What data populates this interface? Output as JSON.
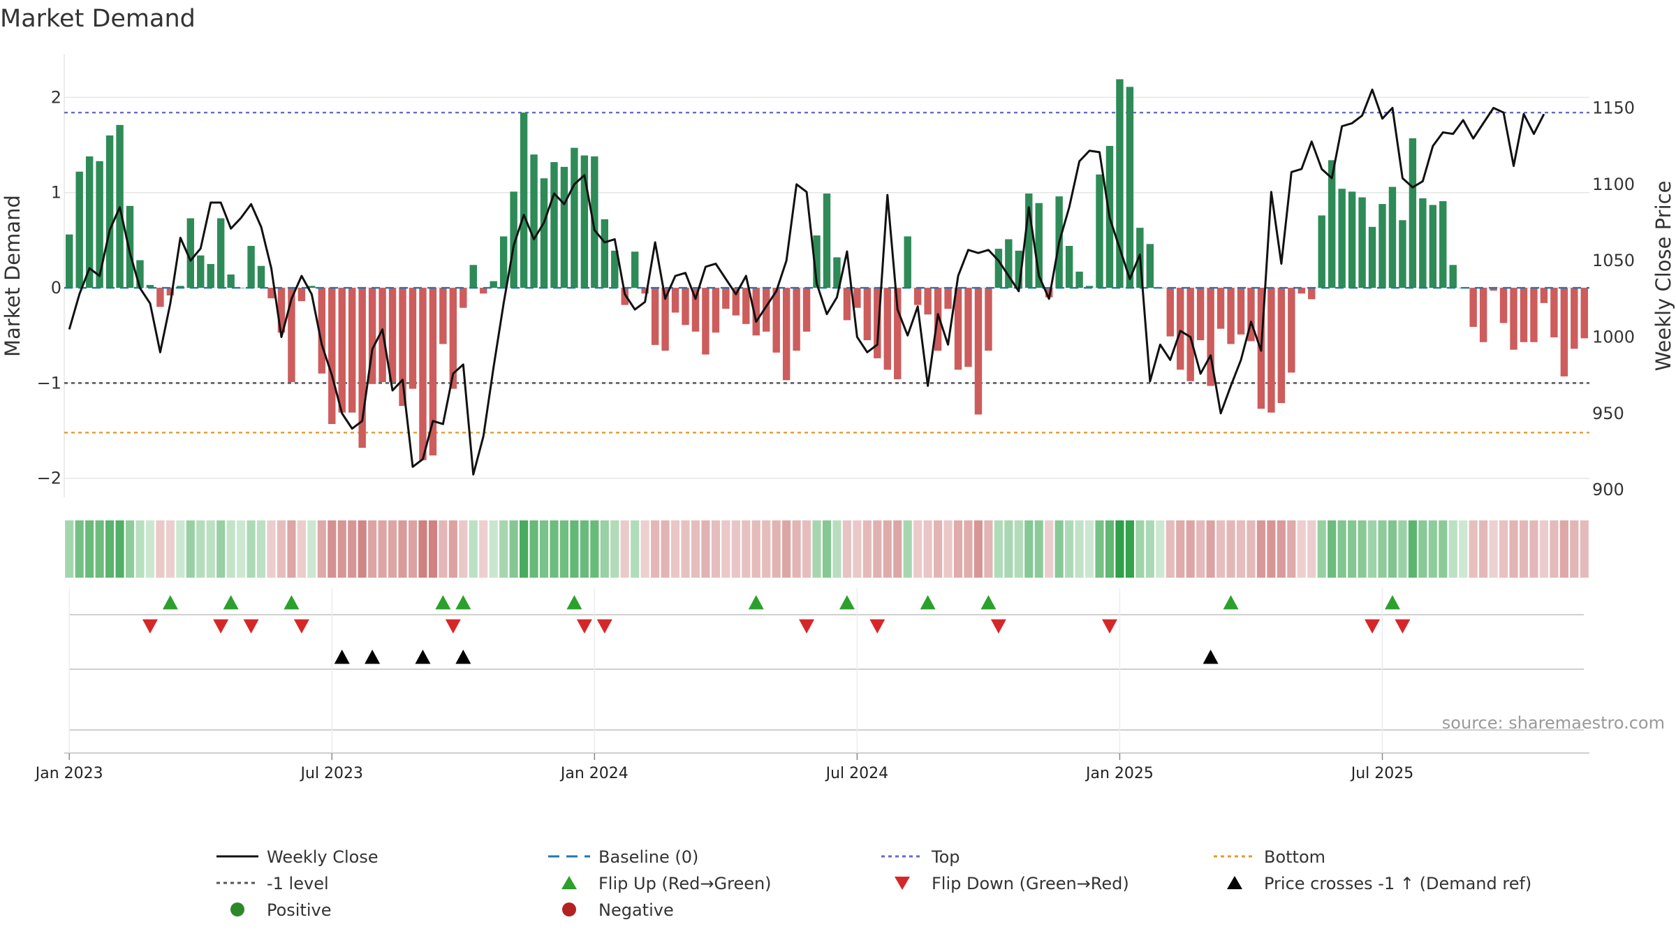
{
  "chart_data": {
    "type": "bar+line",
    "title": "Market Demand",
    "ylabel_left": "Market Demand",
    "ylabel_right": "Weekly Close Price",
    "ylim_left": [
      -2.2,
      2.45
    ],
    "ylim_right": [
      895,
      1185
    ],
    "yticks_left": [
      2,
      1,
      0,
      -1,
      -2
    ],
    "yticks_left_labels": [
      "2",
      "1",
      "0",
      "−1",
      "−2"
    ],
    "yticks_right": [
      1150,
      1100,
      1050,
      1000,
      950,
      900
    ],
    "yticks_right_labels": [
      "1150",
      "1100",
      "1050",
      "1000",
      "950",
      "900"
    ],
    "x_ticks": [
      {
        "week": 1,
        "label": "Jan 2023"
      },
      {
        "week": 27,
        "label": "Jul 2023"
      },
      {
        "week": 53,
        "label": "Jan 2024"
      },
      {
        "week": 79,
        "label": "Jul 2024"
      },
      {
        "week": 105,
        "label": "Jan 2025"
      },
      {
        "week": 131,
        "label": "Jul 2025"
      }
    ],
    "reference_lines": {
      "top": 1.84,
      "minus_one": -1.0,
      "bottom": -1.52,
      "baseline": 0
    },
    "demand": [
      0.56,
      1.22,
      1.38,
      1.33,
      1.6,
      1.71,
      0.86,
      0.29,
      0.03,
      -0.2,
      -0.08,
      0.02,
      0.73,
      0.34,
      0.25,
      0.73,
      0.14,
      0.0,
      0.44,
      0.23,
      -0.11,
      -0.47,
      -0.99,
      -0.14,
      0.02,
      -0.9,
      -1.43,
      -1.31,
      -1.31,
      -1.68,
      -1.01,
      -0.99,
      -0.99,
      -1.24,
      -1.06,
      -1.81,
      -1.76,
      -0.59,
      -1.06,
      -0.21,
      0.24,
      -0.06,
      0.07,
      0.54,
      1.01,
      1.84,
      1.4,
      1.15,
      1.32,
      1.27,
      1.47,
      1.39,
      1.38,
      0.72,
      0.39,
      -0.18,
      0.38,
      -0.06,
      -0.6,
      -0.66,
      -0.26,
      -0.39,
      -0.46,
      -0.7,
      -0.47,
      -0.22,
      -0.29,
      -0.38,
      -0.5,
      -0.46,
      -0.68,
      -0.97,
      -0.66,
      -0.46,
      0.55,
      0.99,
      0.32,
      -0.34,
      -0.21,
      -0.55,
      -0.74,
      -0.86,
      -0.96,
      0.54,
      -0.18,
      -0.28,
      -0.66,
      -0.22,
      -0.86,
      -0.83,
      -1.33,
      -0.66,
      0.41,
      0.51,
      0.39,
      0.99,
      0.89,
      -0.1,
      0.96,
      0.44,
      0.17,
      0.02,
      1.19,
      1.49,
      2.19,
      2.11,
      0.63,
      0.46,
      0.0,
      -0.51,
      -0.86,
      -0.98,
      -0.55,
      -1.03,
      -0.43,
      -0.59,
      -0.49,
      -0.56,
      -1.27,
      -1.31,
      -1.21,
      -0.89,
      -0.06,
      -0.12,
      0.76,
      1.34,
      1.04,
      1.01,
      0.95,
      0.64,
      0.88,
      1.06,
      0.71,
      1.57,
      0.94,
      0.87,
      0.91,
      0.24,
      0.0,
      -0.41,
      -0.57,
      -0.03,
      -0.37,
      -0.65,
      -0.57,
      -0.57,
      -0.16,
      -0.52,
      -0.93,
      -0.64,
      -0.53
    ],
    "weekly_close": [
      1005,
      1028,
      1045,
      1040,
      1070,
      1085,
      1055,
      1032,
      1022,
      990,
      1022,
      1065,
      1050,
      1058,
      1088,
      1088,
      1071,
      1078,
      1087,
      1072,
      1045,
      1000,
      1025,
      1040,
      1028,
      995,
      975,
      950,
      940,
      945,
      992,
      1005,
      965,
      972,
      915,
      920,
      945,
      943,
      976,
      982,
      910,
      935,
      980,
      1022,
      1060,
      1080,
      1064,
      1075,
      1094,
      1087,
      1100,
      1106,
      1070,
      1062,
      1064,
      1028,
      1018,
      1023,
      1062,
      1025,
      1040,
      1042,
      1025,
      1046,
      1048,
      1038,
      1028,
      1040,
      1010,
      1020,
      1030,
      1050,
      1100,
      1095,
      1035,
      1015,
      1026,
      1056,
      1000,
      990,
      995,
      1093,
      1018,
      1001,
      1020,
      968,
      1015,
      995,
      1040,
      1057,
      1055,
      1057,
      1050,
      1040,
      1030,
      1085,
      1040,
      1025,
      1062,
      1085,
      1115,
      1122,
      1121,
      1078,
      1058,
      1038,
      1054,
      971,
      995,
      985,
      1004,
      1000,
      976,
      988,
      950,
      968,
      985,
      1010,
      991,
      1095,
      1048,
      1108,
      1110,
      1128,
      1110,
      1104,
      1138,
      1140,
      1145,
      1162,
      1143,
      1150,
      1104,
      1098,
      1102,
      1125,
      1134,
      1133,
      1142,
      1130,
      1140,
      1150,
      1147,
      1112,
      1146,
      1133,
      1146
    ],
    "flip_up_weeks": [
      11,
      17,
      23,
      38,
      40,
      51,
      69,
      78,
      86,
      92,
      116,
      132
    ],
    "flip_down_weeks": [
      9,
      16,
      19,
      24,
      39,
      52,
      54,
      74,
      81,
      93,
      104,
      130,
      133
    ],
    "price_cross_weeks": [
      28,
      31,
      36,
      40,
      114
    ],
    "series_colors": {
      "positive": "#2e8b57",
      "negative": "#cd5c5c",
      "price": "#111111",
      "baseline": "#1f77b4",
      "top": "#6a6ac8",
      "minus_one": "#555555",
      "bottom": "#e69a2e",
      "flip_up": "#2ca02c",
      "flip_down": "#d62728",
      "cross": "#000000"
    },
    "legend": [
      {
        "label": "Weekly Close",
        "style": "line",
        "color": "#111111"
      },
      {
        "label": "Baseline (0)",
        "style": "dash",
        "color": "#1f77b4"
      },
      {
        "label": "Top",
        "style": "dot",
        "color": "#6a6ac8"
      },
      {
        "label": "Bottom",
        "style": "dot",
        "color": "#e69a2e"
      },
      {
        "label": "-1 level",
        "style": "dot",
        "color": "#555555"
      },
      {
        "label": "Flip Up (Red→Green)",
        "style": "tri-up",
        "color": "#2ca02c"
      },
      {
        "label": "Flip Down (Green→Red)",
        "style": "tri-down",
        "color": "#d62728"
      },
      {
        "label": "Price crosses -1 ↑ (Demand ref)",
        "style": "tri-up",
        "color": "#000000"
      },
      {
        "label": "Positive",
        "style": "circle",
        "color": "#2a8a2a"
      },
      {
        "label": "Negative",
        "style": "circle",
        "color": "#b22222"
      }
    ],
    "source": "source: sharemaestro.com"
  }
}
